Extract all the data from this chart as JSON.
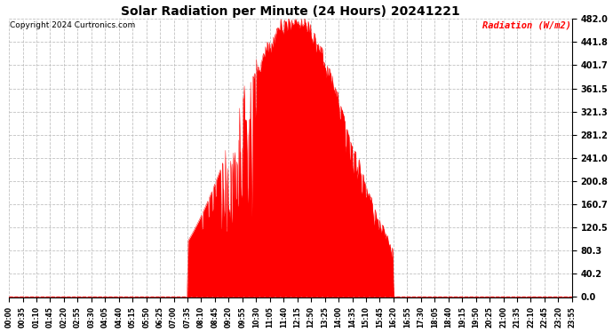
{
  "title": "Solar Radiation per Minute (24 Hours) 20241221",
  "copyright": "Copyright 2024 Curtronics.com",
  "ylabel": "Radiation (W/m2)",
  "ylabel_color": "#ff0000",
  "fill_color": "#ff0000",
  "line_color": "#ff0000",
  "background_color": "#ffffff",
  "grid_color": "#bbbbbb",
  "ymax": 482.0,
  "ymin": 0.0,
  "yticks": [
    0.0,
    40.2,
    80.3,
    120.5,
    160.7,
    200.8,
    241.0,
    281.2,
    321.3,
    361.5,
    401.7,
    441.8,
    482.0
  ],
  "hline_y": 0.0,
  "hline_color": "#ff0000",
  "hline_style": "--"
}
